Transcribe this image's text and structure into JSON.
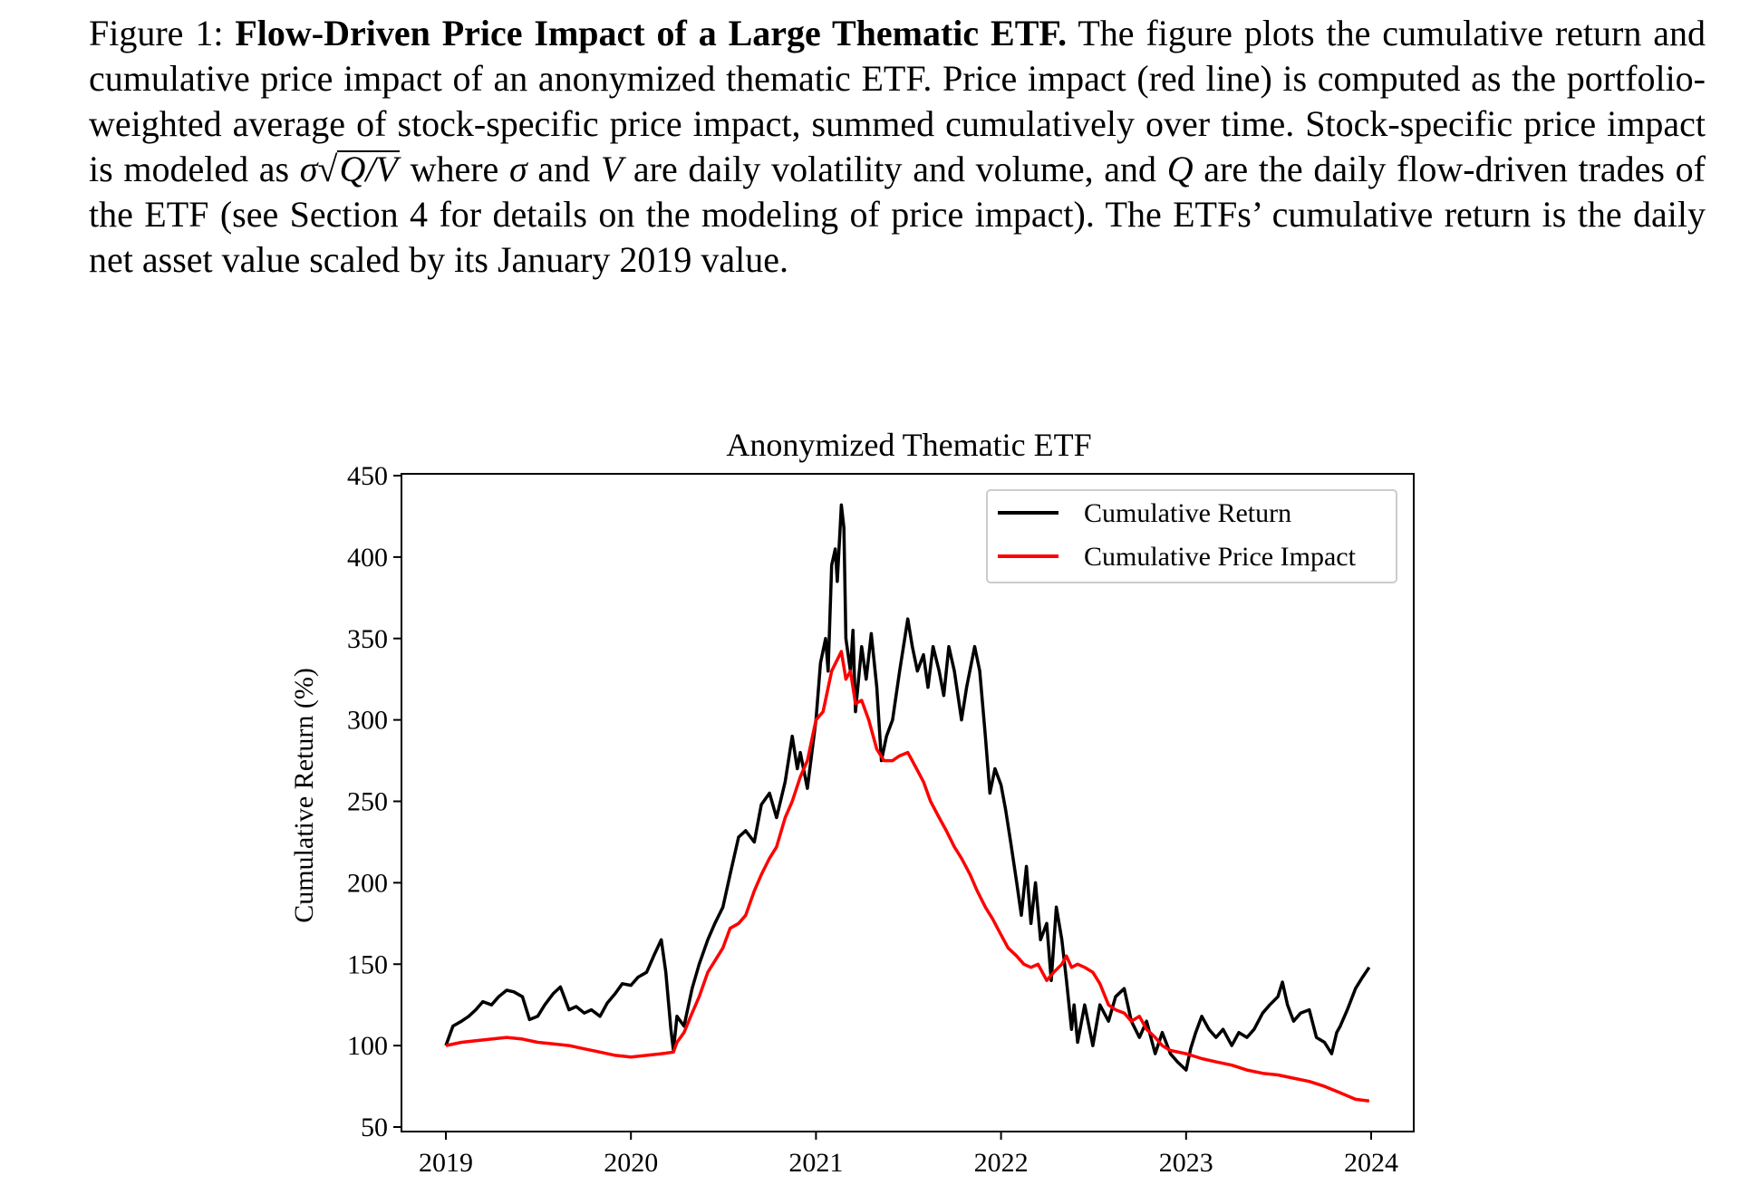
{
  "caption": {
    "label": "Figure 1:",
    "title": "Flow-Driven Price Impact of a Large Thematic ETF.",
    "body1": "The figure plots the cumulative return and cumulative price impact of an anonymized thematic ETF. Price impact (red line) is computed as the portfolio-weighted average of stock-specific price impact, summed cumulatively over time. Stock-specific price impact is modeled as ",
    "sigma": "σ",
    "sqrt_sign": "√",
    "q_over_v": "Q/V",
    "body2": " where ",
    "sigma2": "σ",
    "body3": " and ",
    "v": "V",
    "body4": " are daily volatility and volume, and ",
    "q": "Q",
    "body5": " are the daily flow-driven trades of the ETF (see Section 4 for details on the modeling of price impact). The ETFs’ cumulative return is the daily net asset value scaled by its January 2019 value."
  },
  "chart_data": {
    "type": "line",
    "title": "Anonymized Thematic ETF",
    "xlabel": "",
    "ylabel": "Cumulative Return (%)",
    "xlim": [
      "2018-09-15",
      "2024-03-20"
    ],
    "ylim": [
      47.3,
      451.4
    ],
    "x_ticks": [
      "2019",
      "2020",
      "2021",
      "2022",
      "2023",
      "2024"
    ],
    "y_ticks": [
      "50",
      "100",
      "150",
      "200",
      "250",
      "300",
      "350",
      "400",
      "450"
    ],
    "grid": false,
    "legend_position": "top-right",
    "series": [
      {
        "name": "Cumulative Return",
        "color": "#000000",
        "points": [
          [
            "2019-01-01",
            100
          ],
          [
            "2019-01-15",
            112
          ],
          [
            "2019-02-01",
            115
          ],
          [
            "2019-02-15",
            118
          ],
          [
            "2019-03-01",
            122
          ],
          [
            "2019-03-15",
            127
          ],
          [
            "2019-04-01",
            125
          ],
          [
            "2019-04-15",
            130
          ],
          [
            "2019-05-01",
            134
          ],
          [
            "2019-05-15",
            133
          ],
          [
            "2019-06-01",
            130
          ],
          [
            "2019-06-15",
            116
          ],
          [
            "2019-07-01",
            118
          ],
          [
            "2019-07-15",
            125
          ],
          [
            "2019-08-01",
            132
          ],
          [
            "2019-08-15",
            136
          ],
          [
            "2019-09-01",
            122
          ],
          [
            "2019-09-15",
            124
          ],
          [
            "2019-10-01",
            120
          ],
          [
            "2019-10-15",
            122
          ],
          [
            "2019-11-01",
            118
          ],
          [
            "2019-11-15",
            126
          ],
          [
            "2019-12-01",
            132
          ],
          [
            "2019-12-15",
            138
          ],
          [
            "2020-01-01",
            137
          ],
          [
            "2020-01-15",
            142
          ],
          [
            "2020-02-01",
            145
          ],
          [
            "2020-02-15",
            155
          ],
          [
            "2020-03-01",
            165
          ],
          [
            "2020-03-10",
            145
          ],
          [
            "2020-03-20",
            110
          ],
          [
            "2020-03-25",
            97
          ],
          [
            "2020-04-01",
            118
          ],
          [
            "2020-04-15",
            112
          ],
          [
            "2020-05-01",
            135
          ],
          [
            "2020-05-15",
            150
          ],
          [
            "2020-06-01",
            165
          ],
          [
            "2020-06-15",
            175
          ],
          [
            "2020-07-01",
            185
          ],
          [
            "2020-07-15",
            205
          ],
          [
            "2020-08-01",
            228
          ],
          [
            "2020-08-15",
            232
          ],
          [
            "2020-09-01",
            225
          ],
          [
            "2020-09-15",
            248
          ],
          [
            "2020-10-01",
            255
          ],
          [
            "2020-10-15",
            240
          ],
          [
            "2020-11-01",
            262
          ],
          [
            "2020-11-15",
            290
          ],
          [
            "2020-11-25",
            270
          ],
          [
            "2020-12-01",
            280
          ],
          [
            "2020-12-15",
            258
          ],
          [
            "2021-01-01",
            300
          ],
          [
            "2021-01-10",
            335
          ],
          [
            "2021-01-20",
            350
          ],
          [
            "2021-01-25",
            330
          ],
          [
            "2021-02-01",
            395
          ],
          [
            "2021-02-08",
            405
          ],
          [
            "2021-02-12",
            385
          ],
          [
            "2021-02-20",
            432
          ],
          [
            "2021-02-25",
            418
          ],
          [
            "2021-03-01",
            350
          ],
          [
            "2021-03-10",
            330
          ],
          [
            "2021-03-15",
            355
          ],
          [
            "2021-03-20",
            305
          ],
          [
            "2021-04-01",
            345
          ],
          [
            "2021-04-10",
            325
          ],
          [
            "2021-04-20",
            353
          ],
          [
            "2021-05-01",
            320
          ],
          [
            "2021-05-10",
            275
          ],
          [
            "2021-05-20",
            290
          ],
          [
            "2021-06-01",
            300
          ],
          [
            "2021-06-15",
            330
          ],
          [
            "2021-07-01",
            362
          ],
          [
            "2021-07-10",
            345
          ],
          [
            "2021-07-20",
            330
          ],
          [
            "2021-08-01",
            340
          ],
          [
            "2021-08-10",
            320
          ],
          [
            "2021-08-20",
            345
          ],
          [
            "2021-09-01",
            330
          ],
          [
            "2021-09-10",
            315
          ],
          [
            "2021-09-20",
            345
          ],
          [
            "2021-10-01",
            330
          ],
          [
            "2021-10-15",
            300
          ],
          [
            "2021-10-25",
            320
          ],
          [
            "2021-11-10",
            345
          ],
          [
            "2021-11-20",
            330
          ],
          [
            "2021-12-01",
            290
          ],
          [
            "2021-12-10",
            255
          ],
          [
            "2021-12-20",
            270
          ],
          [
            "2022-01-01",
            260
          ],
          [
            "2022-01-10",
            245
          ],
          [
            "2022-01-20",
            225
          ],
          [
            "2022-02-01",
            200
          ],
          [
            "2022-02-10",
            180
          ],
          [
            "2022-02-20",
            210
          ],
          [
            "2022-03-01",
            175
          ],
          [
            "2022-03-10",
            200
          ],
          [
            "2022-03-20",
            165
          ],
          [
            "2022-04-01",
            175
          ],
          [
            "2022-04-10",
            140
          ],
          [
            "2022-04-20",
            185
          ],
          [
            "2022-05-01",
            165
          ],
          [
            "2022-05-10",
            140
          ],
          [
            "2022-05-20",
            110
          ],
          [
            "2022-05-25",
            125
          ],
          [
            "2022-06-01",
            102
          ],
          [
            "2022-06-15",
            125
          ],
          [
            "2022-07-01",
            100
          ],
          [
            "2022-07-15",
            125
          ],
          [
            "2022-08-01",
            115
          ],
          [
            "2022-08-15",
            130
          ],
          [
            "2022-09-01",
            135
          ],
          [
            "2022-09-15",
            115
          ],
          [
            "2022-10-01",
            105
          ],
          [
            "2022-10-15",
            115
          ],
          [
            "2022-11-01",
            95
          ],
          [
            "2022-11-15",
            108
          ],
          [
            "2022-12-01",
            95
          ],
          [
            "2022-12-15",
            90
          ],
          [
            "2023-01-01",
            85
          ],
          [
            "2023-01-10",
            98
          ],
          [
            "2023-01-20",
            108
          ],
          [
            "2023-02-01",
            118
          ],
          [
            "2023-02-15",
            110
          ],
          [
            "2023-03-01",
            105
          ],
          [
            "2023-03-15",
            110
          ],
          [
            "2023-04-01",
            100
          ],
          [
            "2023-04-15",
            108
          ],
          [
            "2023-05-01",
            105
          ],
          [
            "2023-05-15",
            110
          ],
          [
            "2023-06-01",
            120
          ],
          [
            "2023-06-15",
            125
          ],
          [
            "2023-07-01",
            130
          ],
          [
            "2023-07-10",
            139
          ],
          [
            "2023-07-20",
            125
          ],
          [
            "2023-08-01",
            115
          ],
          [
            "2023-08-15",
            120
          ],
          [
            "2023-09-01",
            122
          ],
          [
            "2023-09-15",
            105
          ],
          [
            "2023-10-01",
            102
          ],
          [
            "2023-10-15",
            95
          ],
          [
            "2023-10-25",
            108
          ],
          [
            "2023-11-01",
            112
          ],
          [
            "2023-11-15",
            122
          ],
          [
            "2023-12-01",
            135
          ],
          [
            "2023-12-15",
            142
          ],
          [
            "2023-12-28",
            148
          ]
        ]
      },
      {
        "name": "Cumulative Price Impact",
        "color": "#ff0000",
        "points": [
          [
            "2019-01-01",
            100
          ],
          [
            "2019-02-01",
            102
          ],
          [
            "2019-03-01",
            103
          ],
          [
            "2019-04-01",
            104
          ],
          [
            "2019-05-01",
            105
          ],
          [
            "2019-06-01",
            104
          ],
          [
            "2019-07-01",
            102
          ],
          [
            "2019-08-01",
            101
          ],
          [
            "2019-09-01",
            100
          ],
          [
            "2019-10-01",
            98
          ],
          [
            "2019-11-01",
            96
          ],
          [
            "2019-12-01",
            94
          ],
          [
            "2020-01-01",
            93
          ],
          [
            "2020-02-01",
            94
          ],
          [
            "2020-03-01",
            95
          ],
          [
            "2020-03-25",
            96
          ],
          [
            "2020-04-01",
            102
          ],
          [
            "2020-04-15",
            108
          ],
          [
            "2020-05-01",
            120
          ],
          [
            "2020-05-15",
            130
          ],
          [
            "2020-06-01",
            145
          ],
          [
            "2020-06-15",
            152
          ],
          [
            "2020-07-01",
            160
          ],
          [
            "2020-07-15",
            172
          ],
          [
            "2020-08-01",
            175
          ],
          [
            "2020-08-15",
            180
          ],
          [
            "2020-09-01",
            195
          ],
          [
            "2020-09-15",
            205
          ],
          [
            "2020-10-01",
            215
          ],
          [
            "2020-10-15",
            222
          ],
          [
            "2020-11-01",
            240
          ],
          [
            "2020-11-15",
            250
          ],
          [
            "2020-12-01",
            265
          ],
          [
            "2020-12-15",
            275
          ],
          [
            "2021-01-01",
            300
          ],
          [
            "2021-01-15",
            305
          ],
          [
            "2021-02-01",
            330
          ],
          [
            "2021-02-20",
            342
          ],
          [
            "2021-03-01",
            325
          ],
          [
            "2021-03-10",
            330
          ],
          [
            "2021-03-20",
            310
          ],
          [
            "2021-04-01",
            312
          ],
          [
            "2021-04-15",
            300
          ],
          [
            "2021-05-01",
            282
          ],
          [
            "2021-05-15",
            275
          ],
          [
            "2021-06-01",
            275
          ],
          [
            "2021-06-15",
            278
          ],
          [
            "2021-07-01",
            280
          ],
          [
            "2021-07-15",
            272
          ],
          [
            "2021-08-01",
            262
          ],
          [
            "2021-08-15",
            250
          ],
          [
            "2021-09-01",
            240
          ],
          [
            "2021-09-15",
            232
          ],
          [
            "2021-10-01",
            222
          ],
          [
            "2021-10-15",
            215
          ],
          [
            "2021-11-01",
            205
          ],
          [
            "2021-11-15",
            195
          ],
          [
            "2021-12-01",
            185
          ],
          [
            "2021-12-15",
            178
          ],
          [
            "2022-01-01",
            168
          ],
          [
            "2022-01-15",
            160
          ],
          [
            "2022-02-01",
            155
          ],
          [
            "2022-02-15",
            150
          ],
          [
            "2022-03-01",
            148
          ],
          [
            "2022-03-15",
            150
          ],
          [
            "2022-04-01",
            140
          ],
          [
            "2022-04-15",
            145
          ],
          [
            "2022-05-01",
            150
          ],
          [
            "2022-05-10",
            155
          ],
          [
            "2022-05-20",
            148
          ],
          [
            "2022-06-01",
            150
          ],
          [
            "2022-06-15",
            148
          ],
          [
            "2022-07-01",
            145
          ],
          [
            "2022-07-15",
            138
          ],
          [
            "2022-08-01",
            125
          ],
          [
            "2022-08-15",
            122
          ],
          [
            "2022-09-01",
            120
          ],
          [
            "2022-09-15",
            115
          ],
          [
            "2022-10-01",
            118
          ],
          [
            "2022-10-15",
            110
          ],
          [
            "2022-11-01",
            105
          ],
          [
            "2022-11-15",
            100
          ],
          [
            "2022-12-01",
            97
          ],
          [
            "2023-01-01",
            95
          ],
          [
            "2023-02-01",
            92
          ],
          [
            "2023-03-01",
            90
          ],
          [
            "2023-04-01",
            88
          ],
          [
            "2023-05-01",
            85
          ],
          [
            "2023-06-01",
            83
          ],
          [
            "2023-07-01",
            82
          ],
          [
            "2023-08-01",
            80
          ],
          [
            "2023-09-01",
            78
          ],
          [
            "2023-10-01",
            75
          ],
          [
            "2023-11-01",
            71
          ],
          [
            "2023-12-01",
            67
          ],
          [
            "2023-12-28",
            66
          ]
        ]
      }
    ]
  }
}
